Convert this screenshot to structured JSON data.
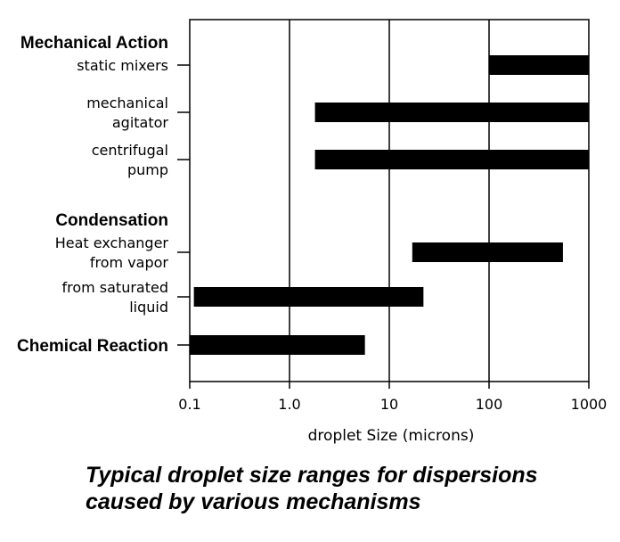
{
  "chart_data": {
    "type": "bar",
    "orientation": "horizontal",
    "scale": "log",
    "xlabel": "droplet Size (microns)",
    "xlim": [
      0.1,
      1000
    ],
    "x_ticks": [
      0.1,
      1,
      10,
      100,
      1000
    ],
    "x_tick_labels": [
      "0.1",
      "1.0",
      "10",
      "100",
      "1000"
    ],
    "grid": "vertical lines at 1.0, 10, 100",
    "caption": "Typical droplet size ranges for dispersions caused by various mechanisms",
    "groups": [
      {
        "label": "Mechanical Action",
        "bold": true,
        "bar": null
      },
      {
        "label": "static mixers",
        "bold": false,
        "bar": {
          "low": 100,
          "high": 1000
        }
      },
      {
        "label": "mechanical agitator",
        "bold": false,
        "bar": {
          "low": 1.8,
          "high": 1000
        }
      },
      {
        "label": "centrifugal pump",
        "bold": false,
        "bar": {
          "low": 1.8,
          "high": 1000
        }
      },
      {
        "label": "Condensation",
        "bold": true,
        "bar": null
      },
      {
        "label": "Heat exchanger from vapor",
        "bold": false,
        "bar": {
          "low": 17,
          "high": 550
        }
      },
      {
        "label": "from saturated liquid",
        "bold": false,
        "bar": {
          "low": 0.11,
          "high": 22
        }
      },
      {
        "label": "Chemical Reaction",
        "bold": true,
        "bar": {
          "low": 0.1,
          "high": 5.7
        }
      }
    ],
    "label_lines": {
      "mechanical agitator": [
        "mechanical",
        "agitator"
      ],
      "centrifugal pump": [
        "centrifugal",
        "pump"
      ],
      "Heat exchanger from vapor": [
        "Heat exchanger",
        "from vapor"
      ],
      "from saturated liquid": [
        "from saturated",
        "liquid"
      ]
    },
    "colors": {
      "bar": "#000000",
      "axis": "#000000",
      "text": "#000000"
    }
  }
}
